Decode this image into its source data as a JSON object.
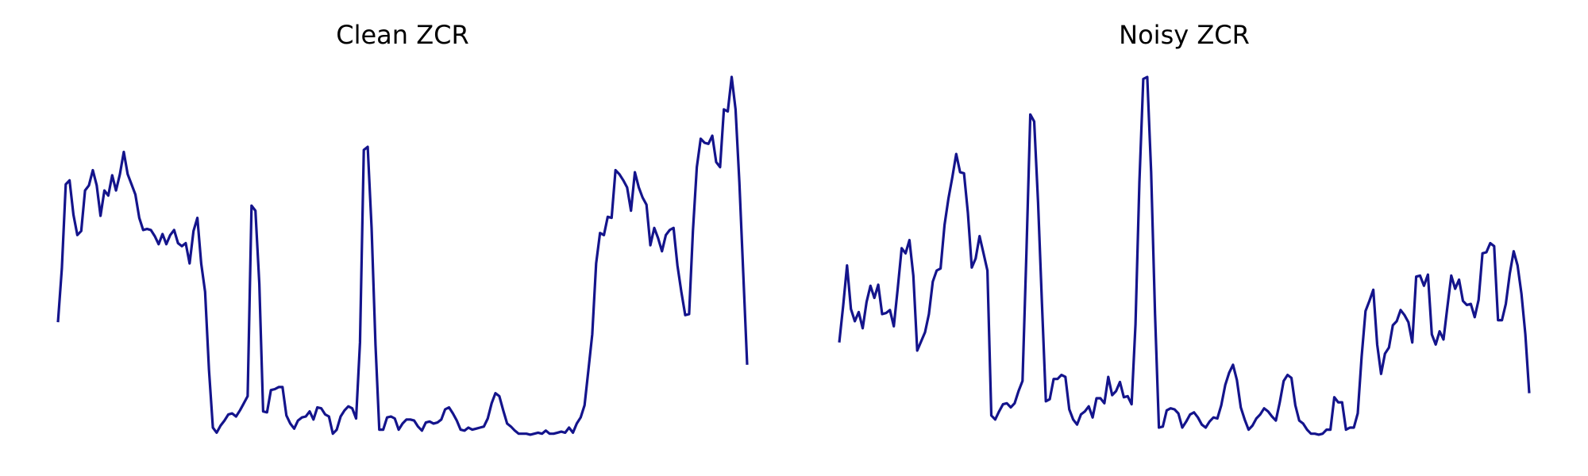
{
  "chart_data": [
    {
      "type": "line",
      "title": "Clean ZCR",
      "color": "#14148c",
      "ylim": [
        0,
        0.4
      ],
      "values": [
        0.122,
        0.175,
        0.258,
        0.262,
        0.228,
        0.208,
        0.212,
        0.252,
        0.257,
        0.272,
        0.257,
        0.227,
        0.252,
        0.247,
        0.267,
        0.252,
        0.268,
        0.29,
        0.268,
        0.258,
        0.248,
        0.225,
        0.213,
        0.214,
        0.213,
        0.207,
        0.199,
        0.209,
        0.199,
        0.208,
        0.213,
        0.2,
        0.197,
        0.2,
        0.18,
        0.212,
        0.225,
        0.18,
        0.152,
        0.075,
        0.018,
        0.013,
        0.02,
        0.025,
        0.031,
        0.032,
        0.029,
        0.035,
        0.042,
        0.049,
        0.237,
        0.232,
        0.16,
        0.034,
        0.033,
        0.055,
        0.056,
        0.058,
        0.058,
        0.03,
        0.022,
        0.017,
        0.025,
        0.028,
        0.029,
        0.034,
        0.026,
        0.038,
        0.037,
        0.031,
        0.029,
        0.012,
        0.016,
        0.029,
        0.035,
        0.039,
        0.037,
        0.027,
        0.102,
        0.292,
        0.295,
        0.215,
        0.1,
        0.016,
        0.016,
        0.028,
        0.029,
        0.027,
        0.016,
        0.022,
        0.026,
        0.026,
        0.025,
        0.019,
        0.015,
        0.023,
        0.024,
        0.022,
        0.023,
        0.026,
        0.036,
        0.038,
        0.032,
        0.025,
        0.016,
        0.015,
        0.018,
        0.016,
        0.017,
        0.018,
        0.019,
        0.027,
        0.042,
        0.052,
        0.049,
        0.035,
        0.022,
        0.019,
        0.015,
        0.012,
        0.012,
        0.012,
        0.011,
        0.012,
        0.013,
        0.012,
        0.015,
        0.012,
        0.012,
        0.013,
        0.014,
        0.013,
        0.018,
        0.013,
        0.022,
        0.028,
        0.04,
        0.075,
        0.11,
        0.18,
        0.21,
        0.208,
        0.226,
        0.225,
        0.272,
        0.268,
        0.262,
        0.255,
        0.232,
        0.27,
        0.255,
        0.245,
        0.238,
        0.198,
        0.215,
        0.205,
        0.192,
        0.208,
        0.213,
        0.215,
        0.178,
        0.152,
        0.129,
        0.13,
        0.212,
        0.275,
        0.303,
        0.299,
        0.298,
        0.306,
        0.28,
        0.275,
        0.332,
        0.33,
        0.364,
        0.332,
        0.26,
        0.17,
        0.08
      ]
    },
    {
      "type": "line",
      "title": "Noisy ZCR",
      "color": "#14148c",
      "ylim": [
        0,
        0.4
      ],
      "values": [
        0.102,
        0.138,
        0.178,
        0.135,
        0.123,
        0.132,
        0.116,
        0.142,
        0.158,
        0.146,
        0.159,
        0.13,
        0.131,
        0.134,
        0.118,
        0.155,
        0.195,
        0.19,
        0.203,
        0.168,
        0.094,
        0.103,
        0.112,
        0.13,
        0.162,
        0.173,
        0.175,
        0.218,
        0.244,
        0.265,
        0.288,
        0.27,
        0.269,
        0.23,
        0.176,
        0.185,
        0.207,
        0.19,
        0.173,
        0.03,
        0.026,
        0.034,
        0.041,
        0.042,
        0.038,
        0.042,
        0.054,
        0.064,
        0.19,
        0.327,
        0.32,
        0.24,
        0.14,
        0.044,
        0.046,
        0.066,
        0.066,
        0.07,
        0.068,
        0.036,
        0.026,
        0.021,
        0.031,
        0.034,
        0.039,
        0.028,
        0.047,
        0.047,
        0.042,
        0.068,
        0.05,
        0.054,
        0.063,
        0.048,
        0.049,
        0.041,
        0.12,
        0.26,
        0.362,
        0.364,
        0.27,
        0.13,
        0.018,
        0.019,
        0.035,
        0.037,
        0.036,
        0.032,
        0.018,
        0.024,
        0.031,
        0.033,
        0.028,
        0.021,
        0.018,
        0.024,
        0.028,
        0.027,
        0.04,
        0.06,
        0.072,
        0.08,
        0.065,
        0.038,
        0.026,
        0.016,
        0.02,
        0.027,
        0.031,
        0.037,
        0.034,
        0.029,
        0.025,
        0.043,
        0.064,
        0.07,
        0.067,
        0.04,
        0.025,
        0.022,
        0.016,
        0.012,
        0.012,
        0.011,
        0.012,
        0.016,
        0.016,
        0.048,
        0.043,
        0.043,
        0.016,
        0.018,
        0.018,
        0.032,
        0.088,
        0.133,
        0.143,
        0.154,
        0.1,
        0.071,
        0.091,
        0.097,
        0.119,
        0.123,
        0.134,
        0.129,
        0.122,
        0.102,
        0.167,
        0.168,
        0.158,
        0.169,
        0.11,
        0.1,
        0.113,
        0.105,
        0.137,
        0.168,
        0.155,
        0.164,
        0.143,
        0.139,
        0.14,
        0.127,
        0.144,
        0.19,
        0.191,
        0.2,
        0.197,
        0.124,
        0.124,
        0.14,
        0.17,
        0.192,
        0.178,
        0.15,
        0.11,
        0.052
      ]
    }
  ]
}
